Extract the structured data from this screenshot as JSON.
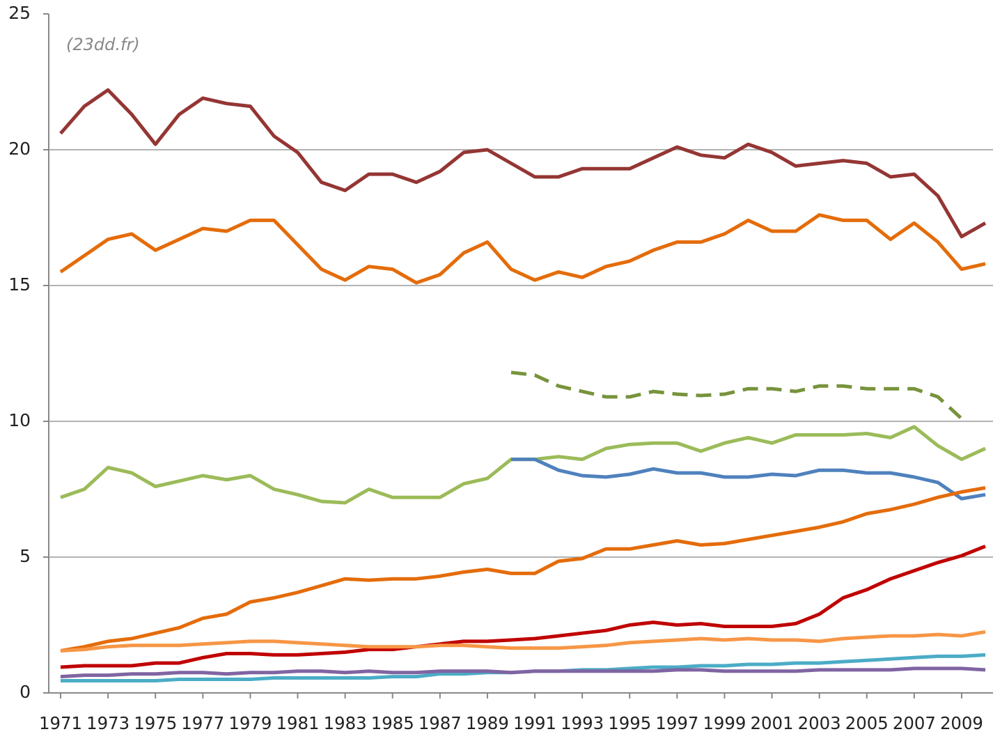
{
  "chart_data": {
    "type": "line",
    "annotation": "(23dd.fr)",
    "x": [
      1971,
      1972,
      1973,
      1974,
      1975,
      1976,
      1977,
      1978,
      1979,
      1980,
      1981,
      1982,
      1983,
      1984,
      1985,
      1986,
      1987,
      1988,
      1989,
      1990,
      1991,
      1992,
      1993,
      1994,
      1995,
      1996,
      1997,
      1998,
      1999,
      2000,
      2001,
      2002,
      2003,
      2004,
      2005,
      2006,
      2007,
      2008,
      2009,
      2010
    ],
    "xlim": [
      1971,
      2010
    ],
    "xticks": [
      1971,
      1973,
      1975,
      1977,
      1979,
      1981,
      1983,
      1985,
      1987,
      1989,
      1991,
      1993,
      1995,
      1997,
      1999,
      2001,
      2003,
      2005,
      2007,
      2009
    ],
    "ylim": [
      0,
      25
    ],
    "yticks": [
      0,
      5,
      10,
      15,
      20,
      25
    ],
    "grid": true,
    "series": [
      {
        "color": "#943634",
        "values": [
          20.6,
          21.6,
          22.2,
          21.3,
          20.2,
          21.3,
          21.9,
          21.7,
          21.6,
          20.5,
          19.9,
          18.8,
          18.5,
          19.1,
          19.1,
          18.8,
          19.2,
          19.9,
          20.0,
          19.5,
          19.0,
          19.0,
          19.3,
          19.3,
          19.3,
          19.7,
          20.1,
          19.8,
          19.7,
          20.2,
          19.9,
          19.4,
          19.5,
          19.6,
          19.5,
          19.0,
          19.1,
          18.3,
          16.8,
          17.3
        ]
      },
      {
        "color": "#e46c0a",
        "values": [
          15.5,
          16.1,
          16.7,
          16.9,
          16.3,
          16.7,
          17.1,
          17.0,
          17.4,
          17.4,
          16.5,
          15.6,
          15.2,
          15.7,
          15.6,
          15.1,
          15.4,
          16.2,
          16.6,
          15.6,
          15.2,
          15.5,
          15.3,
          15.7,
          15.9,
          16.3,
          16.6,
          16.6,
          16.9,
          17.4,
          17.0,
          17.0,
          17.6,
          17.4,
          17.4,
          16.7,
          17.3,
          16.6,
          15.6,
          15.8
        ]
      },
      {
        "color": "#77933c",
        "style": "dashed",
        "values": [
          null,
          null,
          null,
          null,
          null,
          null,
          null,
          null,
          null,
          null,
          null,
          null,
          null,
          null,
          null,
          null,
          null,
          null,
          null,
          11.8,
          11.7,
          11.3,
          11.1,
          10.9,
          10.9,
          11.1,
          11.0,
          10.95,
          11.0,
          11.2,
          11.2,
          11.1,
          11.3,
          11.3,
          11.2,
          11.2,
          11.2,
          10.9,
          10.1,
          null
        ]
      },
      {
        "color": "#9bbb59",
        "values": [
          7.2,
          7.5,
          8.3,
          8.1,
          7.6,
          7.8,
          8.0,
          7.85,
          8.0,
          7.5,
          7.3,
          7.05,
          7.0,
          7.5,
          7.2,
          7.2,
          7.2,
          7.7,
          7.9,
          8.6,
          8.6,
          8.7,
          8.6,
          9.0,
          9.15,
          9.2,
          9.2,
          8.9,
          9.2,
          9.4,
          9.2,
          9.5,
          9.5,
          9.5,
          9.55,
          9.4,
          9.8,
          9.1,
          8.6,
          9.0
        ]
      },
      {
        "color": "#4f81bd",
        "values": [
          null,
          null,
          null,
          null,
          null,
          null,
          null,
          null,
          null,
          null,
          null,
          null,
          null,
          null,
          null,
          null,
          null,
          null,
          null,
          8.6,
          8.6,
          8.2,
          8.0,
          7.95,
          8.05,
          8.25,
          8.1,
          8.1,
          7.95,
          7.95,
          8.05,
          8.0,
          8.2,
          8.2,
          8.1,
          8.1,
          7.95,
          7.75,
          7.15,
          7.3
        ]
      },
      {
        "color": "#e46c0a",
        "values": [
          1.55,
          1.7,
          1.9,
          2.0,
          2.2,
          2.4,
          2.75,
          2.9,
          3.35,
          3.5,
          3.7,
          3.95,
          4.2,
          4.15,
          4.2,
          4.2,
          4.3,
          4.45,
          4.55,
          4.4,
          4.4,
          4.85,
          4.95,
          5.3,
          5.3,
          5.45,
          5.6,
          5.45,
          5.5,
          5.65,
          5.8,
          5.95,
          6.1,
          6.3,
          6.6,
          6.75,
          6.95,
          7.2,
          7.4,
          7.55
        ]
      },
      {
        "color": "#c00000",
        "values": [
          0.95,
          1.0,
          1.0,
          1.0,
          1.1,
          1.1,
          1.3,
          1.45,
          1.45,
          1.4,
          1.4,
          1.45,
          1.5,
          1.6,
          1.6,
          1.7,
          1.8,
          1.9,
          1.9,
          1.95,
          2.0,
          2.1,
          2.2,
          2.3,
          2.5,
          2.6,
          2.5,
          2.55,
          2.45,
          2.45,
          2.45,
          2.55,
          2.9,
          3.5,
          3.8,
          4.2,
          4.5,
          4.8,
          5.05,
          5.4
        ]
      },
      {
        "color": "#f79646",
        "values": [
          1.55,
          1.6,
          1.7,
          1.75,
          1.75,
          1.75,
          1.8,
          1.85,
          1.9,
          1.9,
          1.85,
          1.8,
          1.75,
          1.7,
          1.7,
          1.7,
          1.75,
          1.75,
          1.7,
          1.65,
          1.65,
          1.65,
          1.7,
          1.75,
          1.85,
          1.9,
          1.95,
          2.0,
          1.95,
          2.0,
          1.95,
          1.95,
          1.9,
          2.0,
          2.05,
          2.1,
          2.1,
          2.15,
          2.1,
          2.25
        ]
      },
      {
        "color": "#4bacc6",
        "values": [
          0.45,
          0.45,
          0.45,
          0.45,
          0.45,
          0.5,
          0.5,
          0.5,
          0.5,
          0.55,
          0.55,
          0.55,
          0.55,
          0.55,
          0.6,
          0.6,
          0.7,
          0.7,
          0.75,
          0.75,
          0.8,
          0.8,
          0.85,
          0.85,
          0.9,
          0.95,
          0.95,
          1.0,
          1.0,
          1.05,
          1.05,
          1.1,
          1.1,
          1.15,
          1.2,
          1.25,
          1.3,
          1.35,
          1.35,
          1.4
        ]
      },
      {
        "color": "#8064a2",
        "values": [
          0.6,
          0.65,
          0.65,
          0.7,
          0.7,
          0.75,
          0.75,
          0.7,
          0.75,
          0.75,
          0.8,
          0.8,
          0.75,
          0.8,
          0.75,
          0.75,
          0.8,
          0.8,
          0.8,
          0.75,
          0.8,
          0.8,
          0.8,
          0.8,
          0.8,
          0.8,
          0.85,
          0.85,
          0.8,
          0.8,
          0.8,
          0.8,
          0.85,
          0.85,
          0.85,
          0.85,
          0.9,
          0.9,
          0.9,
          0.85
        ]
      }
    ]
  }
}
